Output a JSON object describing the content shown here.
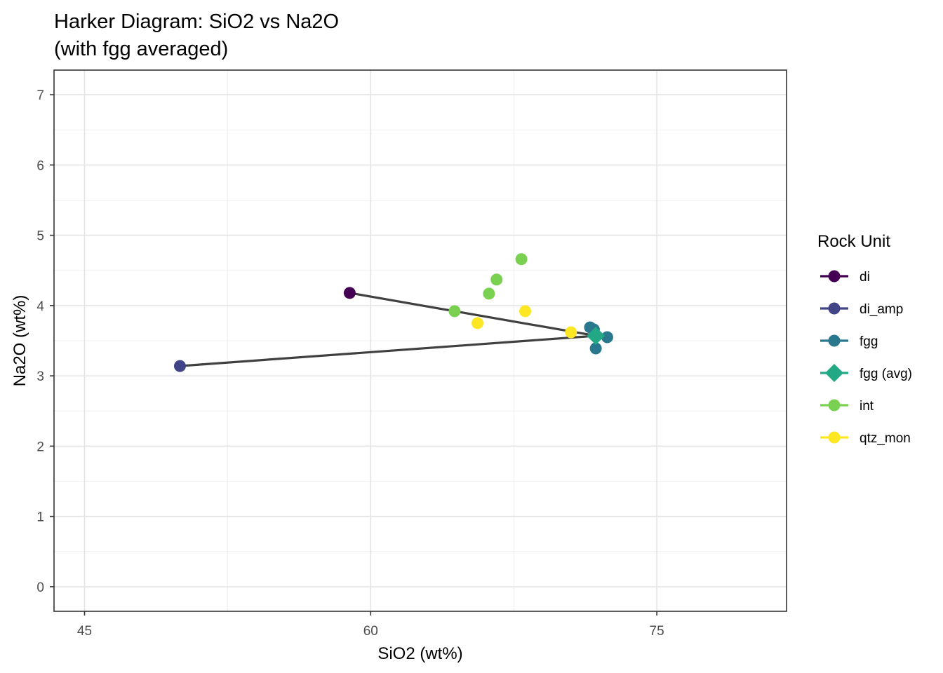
{
  "chart_data": {
    "type": "scatter",
    "title": [
      "Harker Diagram: SiO2 vs Na2O",
      "(with fgg averaged)"
    ],
    "xlabel": "SiO2 (wt%)",
    "ylabel": "Na2O (wt%)",
    "xlim": [
      43.4,
      81.8
    ],
    "ylim": [
      -0.35,
      7.35
    ],
    "x_ticks": [
      45,
      60,
      75
    ],
    "y_ticks": [
      0,
      1,
      2,
      3,
      4,
      5,
      6,
      7
    ],
    "x_tick_labels": [
      "45",
      "60",
      "75"
    ],
    "y_tick_labels": [
      "0",
      "1",
      "2",
      "3",
      "4",
      "5",
      "6",
      "7"
    ],
    "grid": true,
    "legend": {
      "title": "Rock Unit",
      "placement": "right",
      "entries": [
        {
          "label": "di",
          "color": "#440154",
          "shape": "circle"
        },
        {
          "label": "di_amp",
          "color": "#414487",
          "shape": "circle"
        },
        {
          "label": "fgg",
          "color": "#2A788E",
          "shape": "circle"
        },
        {
          "label": "fgg (avg)",
          "color": "#22A884",
          "shape": "diamond"
        },
        {
          "label": "int",
          "color": "#7AD151",
          "shape": "circle"
        },
        {
          "label": "qtz_mon",
          "color": "#FDE725",
          "shape": "circle"
        }
      ]
    },
    "series": [
      {
        "name": "di",
        "color": "#440154",
        "shape": "circle",
        "points": [
          [
            58.9,
            4.18
          ]
        ]
      },
      {
        "name": "di_amp",
        "color": "#414487",
        "shape": "circle",
        "points": [
          [
            50.0,
            3.14
          ]
        ]
      },
      {
        "name": "fgg",
        "color": "#2A788E",
        "shape": "circle",
        "points": [
          [
            71.5,
            3.69
          ],
          [
            71.7,
            3.66
          ],
          [
            72.4,
            3.55
          ],
          [
            71.8,
            3.39
          ]
        ]
      },
      {
        "name": "fgg (avg)",
        "color": "#22A884",
        "shape": "diamond",
        "points": [
          [
            71.8,
            3.57
          ]
        ]
      },
      {
        "name": "int",
        "color": "#7AD151",
        "shape": "circle",
        "points": [
          [
            64.4,
            3.92
          ],
          [
            66.2,
            4.17
          ],
          [
            66.6,
            4.37
          ],
          [
            67.9,
            4.66
          ]
        ]
      },
      {
        "name": "qtz_mon",
        "color": "#FDE725",
        "shape": "circle",
        "points": [
          [
            65.6,
            3.75
          ],
          [
            68.1,
            3.92
          ],
          [
            70.5,
            3.62
          ]
        ]
      }
    ],
    "lines": [
      {
        "from": [
          58.9,
          4.18
        ],
        "to": [
          71.8,
          3.57
        ],
        "color": "#404040"
      },
      {
        "from": [
          50.0,
          3.14
        ],
        "to": [
          71.8,
          3.57
        ],
        "color": "#404040"
      }
    ]
  }
}
